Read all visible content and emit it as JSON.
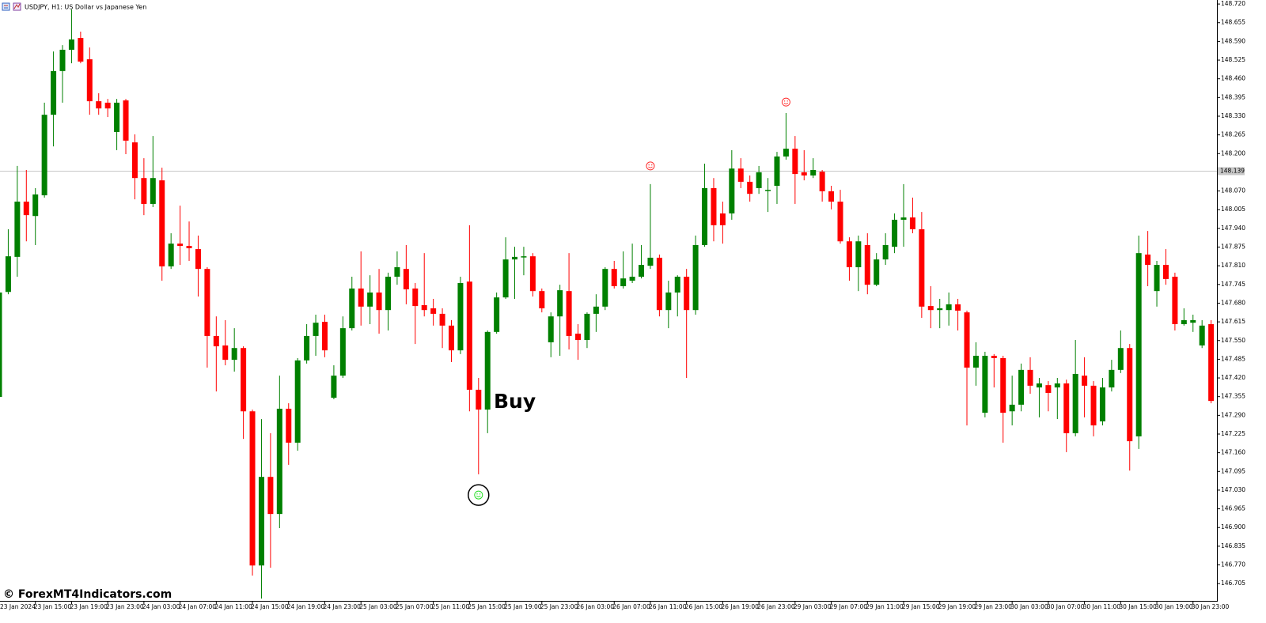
{
  "chart_data": {
    "type": "candlestick",
    "title": "USDJPY, H1:  US Dollar vs Japanese Yen",
    "watermark": "© ForexMT4Indicators.com",
    "annotation": "Buy",
    "up_color": "#008000",
    "down_color": "#ff0000",
    "categories": [
      "23 Jan 2024",
      null,
      null,
      null,
      "23 Jan 15:00",
      null,
      null,
      null,
      "23 Jan 19:00",
      null,
      null,
      null,
      "23 Jan 23:00",
      null,
      null,
      null,
      "24 Jan 03:00",
      null,
      null,
      null,
      "24 Jan 07:00",
      null,
      null,
      null,
      "24 Jan 11:00",
      null,
      null,
      null,
      "24 Jan 15:00",
      null,
      null,
      null,
      "24 Jan 19:00",
      null,
      null,
      null,
      "24 Jan 23:00",
      null,
      null,
      null,
      "25 Jan 03:00",
      null,
      null,
      null,
      "25 Jan 07:00",
      null,
      null,
      null,
      "25 Jan 11:00",
      null,
      null,
      null,
      "25 Jan 15:00",
      null,
      null,
      null,
      "25 Jan 19:00",
      null,
      null,
      null,
      "25 Jan 23:00",
      null,
      null,
      null,
      "26 Jan 03:00",
      null,
      null,
      null,
      "26 Jan 07:00",
      null,
      null,
      null,
      "26 Jan 11:00",
      null,
      null,
      null,
      "26 Jan 15:00",
      null,
      null,
      null,
      "26 Jan 19:00",
      null,
      null,
      null,
      "26 Jan 23:00",
      null,
      null,
      null,
      "29 Jan 03:00",
      null,
      null,
      null,
      "29 Jan 07:00",
      null,
      null,
      null,
      "29 Jan 11:00",
      null,
      null,
      null,
      "29 Jan 15:00",
      null,
      null,
      null,
      "29 Jan 19:00",
      null,
      null,
      null,
      "29 Jan 23:00",
      null,
      null,
      null,
      "30 Jan 03:00",
      null,
      null,
      null,
      "30 Jan 07:00",
      null,
      null,
      null,
      "30 Jan 11:00",
      null,
      null,
      null,
      "30 Jan 15:00",
      null,
      null,
      null,
      "30 Jan 19:00",
      null,
      null,
      null,
      "30 Jan 23:00",
      null,
      null
    ],
    "open": [
      147.354,
      147.719,
      147.841,
      148.033,
      147.983,
      148.055,
      148.335,
      148.487,
      148.561,
      148.602,
      148.528,
      148.382,
      148.377,
      148.275,
      148.385,
      148.239,
      148.115,
      148.025,
      148.107,
      147.808,
      147.887,
      147.879,
      147.868,
      147.799,
      147.566,
      147.533,
      147.483,
      147.524,
      147.304,
      146.768,
      147.076,
      146.947,
      147.313,
      147.195,
      147.481,
      147.566,
      147.615,
      147.351,
      147.428,
      147.593,
      147.731,
      147.668,
      147.717,
      147.656,
      147.772,
      147.799,
      147.731,
      147.673,
      147.662,
      147.643,
      147.602,
      147.516,
      147.755,
      147.379,
      147.31,
      147.58,
      147.7,
      147.832,
      147.841,
      147.843,
      147.722,
      147.544,
      147.634,
      147.722,
      147.574,
      147.552,
      147.643,
      147.668,
      147.799,
      147.739,
      147.758,
      147.772,
      147.81,
      147.838,
      147.656,
      147.717,
      147.772,
      147.656,
      147.882,
      148.08,
      147.992,
      147.992,
      148.148,
      148.102,
      148.08,
      148.072,
      148.088,
      148.19,
      148.217,
      148.135,
      148.124,
      148.137,
      148.069,
      148.033,
      147.895,
      147.805,
      147.882,
      147.744,
      147.832,
      147.876,
      147.97,
      147.978,
      147.937,
      147.67,
      147.656,
      147.656,
      147.676,
      147.648,
      147.456,
      147.299,
      147.497,
      147.489,
      147.304,
      147.327,
      147.448,
      147.387,
      147.395,
      147.387,
      147.401,
      147.228,
      147.428,
      147.393,
      147.269,
      147.387,
      147.448,
      147.524,
      147.217,
      147.849,
      147.722,
      147.813,
      147.772,
      147.607,
      147.612,
      147.533,
      147.607
    ],
    "high": [
      147.72,
      147.937,
      148.157,
      148.143,
      148.08,
      148.377,
      148.555,
      148.577,
      148.701,
      148.624,
      148.569,
      148.41,
      148.39,
      148.39,
      148.39,
      148.267,
      148.184,
      148.261,
      148.151,
      147.923,
      148.019,
      147.964,
      147.915,
      147.805,
      147.634,
      147.621,
      147.593,
      147.53,
      147.31,
      147.277,
      147.228,
      147.428,
      147.332,
      147.489,
      147.607,
      147.64,
      147.64,
      147.464,
      147.634,
      147.772,
      147.86,
      147.777,
      147.799,
      147.786,
      147.86,
      147.882,
      147.75,
      147.854,
      147.695,
      147.662,
      147.621,
      147.772,
      147.951,
      147.42,
      147.585,
      147.717,
      147.909,
      147.876,
      147.876,
      147.854,
      147.731,
      147.648,
      147.744,
      147.854,
      147.607,
      147.648,
      147.711,
      147.805,
      147.827,
      147.86,
      147.887,
      147.882,
      148.094,
      147.849,
      147.758,
      147.777,
      147.799,
      147.915,
      148.165,
      148.115,
      148.033,
      148.212,
      148.184,
      148.124,
      148.157,
      148.115,
      148.206,
      148.341,
      148.261,
      148.212,
      148.184,
      148.143,
      148.088,
      148.074,
      147.909,
      147.915,
      147.923,
      147.854,
      147.923,
      147.992,
      148.094,
      148.047,
      147.997,
      147.739,
      147.695,
      147.717,
      147.695,
      147.654,
      147.544,
      147.511,
      147.503,
      147.497,
      147.428,
      147.47,
      147.492,
      147.42,
      147.409,
      147.42,
      147.414,
      147.552,
      147.492,
      147.409,
      147.42,
      147.483,
      147.585,
      147.538,
      147.915,
      147.931,
      147.827,
      147.868,
      147.786,
      147.662,
      147.64,
      147.621,
      147.621
    ],
    "low": [
      147.35,
      147.711,
      147.772,
      147.895,
      147.882,
      148.047,
      148.225,
      148.377,
      148.514,
      148.514,
      148.335,
      148.335,
      148.327,
      148.212,
      148.198,
      148.041,
      147.986,
      148.014,
      147.758,
      147.799,
      147.813,
      147.827,
      147.703,
      147.456,
      147.373,
      147.464,
      147.442,
      147.208,
      146.733,
      146.653,
      146.76,
      146.898,
      147.118,
      147.167,
      147.47,
      147.497,
      147.492,
      147.346,
      147.42,
      147.585,
      147.602,
      147.607,
      147.574,
      147.585,
      147.744,
      147.676,
      147.538,
      147.634,
      147.602,
      147.524,
      147.475,
      147.503,
      147.304,
      147.085,
      147.228,
      147.574,
      147.695,
      147.695,
      147.777,
      147.703,
      147.648,
      147.492,
      147.497,
      147.519,
      147.483,
      147.524,
      147.58,
      147.656,
      147.731,
      147.731,
      147.75,
      147.766,
      147.799,
      147.634,
      147.593,
      147.634,
      147.42,
      147.64,
      147.876,
      147.895,
      147.887,
      147.97,
      148.08,
      148.033,
      148.06,
      147.997,
      148.025,
      148.179,
      148.025,
      148.107,
      148.115,
      148.033,
      148.006,
      147.887,
      147.758,
      147.722,
      147.711,
      147.739,
      147.813,
      147.854,
      147.876,
      147.923,
      147.629,
      147.593,
      147.593,
      147.602,
      147.585,
      147.255,
      147.393,
      147.283,
      147.387,
      147.195,
      147.255,
      147.304,
      147.365,
      147.283,
      147.304,
      147.277,
      147.162,
      147.217,
      147.283,
      147.217,
      147.255,
      147.373,
      147.437,
      147.098,
      147.173,
      147.739,
      147.668,
      147.744,
      147.585,
      147.602,
      147.58,
      147.524,
      147.332
    ],
    "close": [
      147.717,
      147.843,
      148.033,
      147.986,
      148.058,
      148.335,
      148.487,
      148.561,
      148.597,
      148.52,
      148.382,
      148.357,
      148.357,
      148.377,
      148.245,
      148.115,
      148.025,
      148.115,
      147.808,
      147.887,
      147.879,
      147.871,
      147.799,
      147.566,
      147.53,
      147.483,
      147.524,
      147.304,
      146.768,
      147.076,
      146.947,
      147.313,
      147.195,
      147.481,
      147.566,
      147.612,
      147.516,
      147.428,
      147.593,
      147.731,
      147.668,
      147.717,
      147.656,
      147.772,
      147.805,
      147.728,
      147.67,
      147.656,
      147.643,
      147.602,
      147.516,
      147.75,
      147.379,
      147.31,
      147.58,
      147.7,
      147.832,
      147.841,
      147.843,
      147.722,
      147.662,
      147.634,
      147.725,
      147.566,
      147.552,
      147.643,
      147.668,
      147.799,
      147.739,
      147.766,
      147.772,
      147.813,
      147.838,
      147.656,
      147.717,
      147.772,
      147.656,
      147.882,
      148.08,
      147.951,
      147.951,
      148.148,
      148.102,
      148.06,
      148.135,
      148.074,
      148.19,
      148.217,
      148.129,
      148.124,
      148.143,
      148.069,
      148.033,
      147.895,
      147.805,
      147.895,
      147.744,
      147.832,
      147.882,
      147.97,
      147.978,
      147.937,
      147.668,
      147.656,
      147.662,
      147.676,
      147.654,
      147.456,
      147.497,
      147.497,
      147.489,
      147.299,
      147.327,
      147.448,
      147.393,
      147.401,
      147.368,
      147.401,
      147.228,
      147.434,
      147.393,
      147.255,
      147.387,
      147.448,
      147.524,
      147.2,
      147.854,
      147.813,
      147.813,
      147.764,
      147.607,
      147.621,
      147.621,
      147.602,
      147.34
    ],
    "signals": [
      {
        "bar": 53,
        "price": 147.013,
        "color": "#22dd22"
      },
      {
        "bar": 72,
        "price": 148.157,
        "color": "#ff3030"
      },
      {
        "bar": 87,
        "price": 148.379,
        "color": "#ff3030"
      }
    ],
    "current_price": {
      "value": 148.139,
      "label": "148.139"
    },
    "ylim": [
      146.645,
      148.734
    ],
    "yticks": [
      {
        "value": 148.72,
        "label": "148.720"
      },
      {
        "value": 148.655,
        "label": "148.655"
      },
      {
        "value": 148.59,
        "label": "148.590"
      },
      {
        "value": 148.525,
        "label": "148.525"
      },
      {
        "value": 148.46,
        "label": "148.460"
      },
      {
        "value": 148.395,
        "label": "148.395"
      },
      {
        "value": 148.33,
        "label": "148.330"
      },
      {
        "value": 148.265,
        "label": "148.265"
      },
      {
        "value": 148.2,
        "label": "148.200"
      },
      {
        "value": 148.07,
        "label": "148.070"
      },
      {
        "value": 148.005,
        "label": "148.005"
      },
      {
        "value": 147.94,
        "label": "147.940"
      },
      {
        "value": 147.875,
        "label": "147.875"
      },
      {
        "value": 147.81,
        "label": "147.810"
      },
      {
        "value": 147.745,
        "label": "147.745"
      },
      {
        "value": 147.68,
        "label": "147.680"
      },
      {
        "value": 147.615,
        "label": "147.615"
      },
      {
        "value": 147.55,
        "label": "147.550"
      },
      {
        "value": 147.485,
        "label": "147.485"
      },
      {
        "value": 147.42,
        "label": "147.420"
      },
      {
        "value": 147.355,
        "label": "147.355"
      },
      {
        "value": 147.29,
        "label": "147.290"
      },
      {
        "value": 147.225,
        "label": "147.225"
      },
      {
        "value": 147.16,
        "label": "147.160"
      },
      {
        "value": 147.095,
        "label": "147.095"
      },
      {
        "value": 147.03,
        "label": "147.030"
      },
      {
        "value": 146.965,
        "label": "146.965"
      },
      {
        "value": 146.9,
        "label": "146.900"
      },
      {
        "value": 146.835,
        "label": "146.835"
      },
      {
        "value": 146.77,
        "label": "146.770"
      },
      {
        "value": 146.705,
        "label": "146.705"
      }
    ]
  }
}
